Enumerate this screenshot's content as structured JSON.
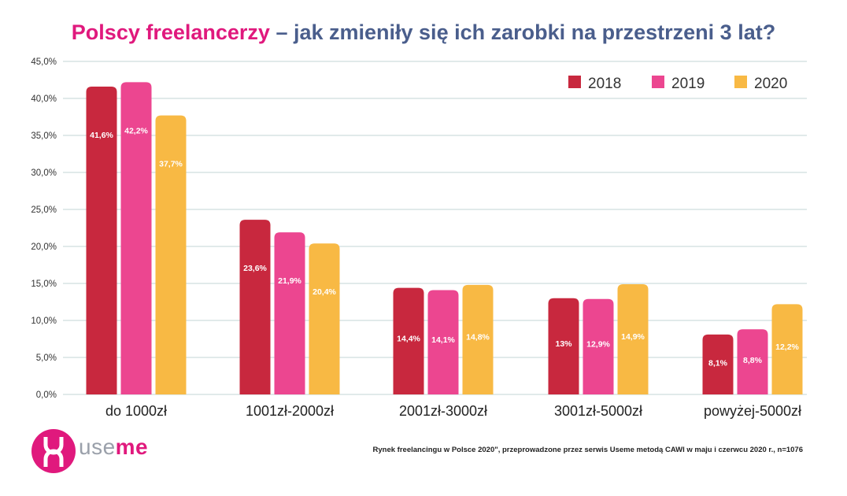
{
  "title": {
    "part1": "Polscy freelancerzy",
    "part2": " – jak zmieniły się ich zarobki na przestrzeni 3 lat?"
  },
  "colors": {
    "2018": "#c8283e",
    "2019": "#ec4690",
    "2020": "#f8b944",
    "grid": "#c3d6d6",
    "title_pink": "#e0197d",
    "title_blue": "#4a5e8c"
  },
  "chart_data": {
    "type": "bar",
    "categories": [
      "do 1000zł",
      "1001zł-2000zł",
      "2001zł-3000zł",
      "3001zł-5000zł",
      "powyżej-5000zł"
    ],
    "series": [
      {
        "name": "2018",
        "values": [
          41.6,
          23.6,
          14.4,
          13,
          8.1
        ],
        "labels": [
          "41,6%",
          "23,6%",
          "14,4%",
          "13%",
          "8,1%"
        ]
      },
      {
        "name": "2019",
        "values": [
          42.2,
          21.9,
          14.1,
          12.9,
          8.8
        ],
        "labels": [
          "42,2%",
          "21,9%",
          "14,1%",
          "12,9%",
          "8,8%"
        ]
      },
      {
        "name": "2020",
        "values": [
          37.7,
          20.4,
          14.8,
          14.9,
          12.2
        ],
        "labels": [
          "37,7%",
          "20,4%",
          "14,8%",
          "14,9%",
          "12,2%"
        ]
      }
    ],
    "yticks": [
      "0,0%",
      "5,0%",
      "10,0%",
      "15,0%",
      "20,0%",
      "25,0%",
      "30,0%",
      "35,0%",
      "40,0%",
      "45,0%"
    ],
    "ylim": [
      0,
      45
    ],
    "grid": true,
    "legend_position": "top-right"
  },
  "logo": {
    "text_left": "use",
    "text_right": "me"
  },
  "source": "Rynek freelancingu w Polsce 2020\", przeprowadzone przez serwis Useme metodą CAWI w maju i czerwcu 2020 r., n=1076"
}
